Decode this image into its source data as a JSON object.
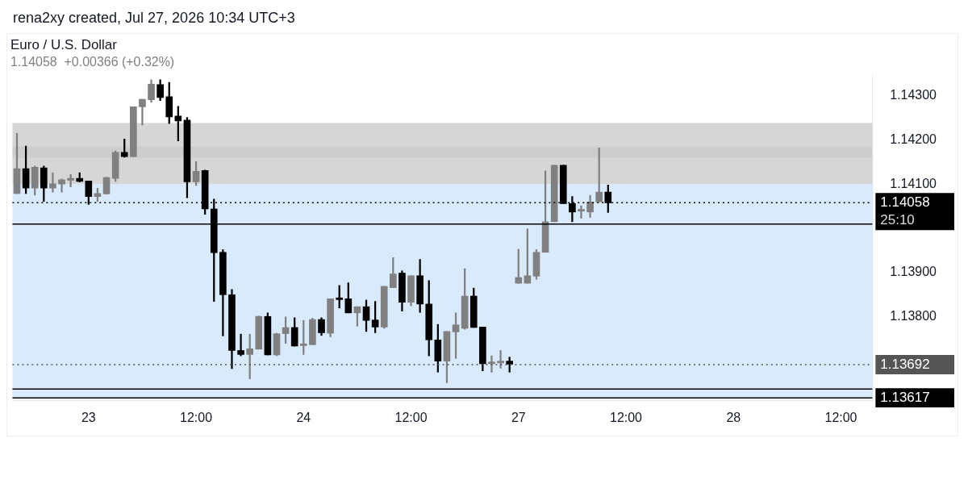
{
  "chart_data": {
    "type": "candlestick",
    "title": "Euro / U.S. Dollar",
    "subtitle": "1.14058  +0.00366 (+0.32%)",
    "annotations": [
      "rena2xy created, Jul 27, 2026 10:34 UTC+3",
      "25:10"
    ],
    "categories": [
      null,
      null,
      null,
      null,
      null,
      null,
      null,
      null,
      "23",
      null,
      null,
      null,
      null,
      null,
      null,
      null,
      null,
      null,
      null,
      null,
      "12:00",
      null,
      null,
      null,
      null,
      null,
      null,
      null,
      null,
      null,
      null,
      null,
      "24",
      null,
      null,
      null,
      null,
      null,
      null,
      null,
      null,
      null,
      null,
      null,
      "12:00",
      null,
      null,
      null,
      null,
      null,
      null,
      null,
      null,
      null,
      null,
      null,
      "27",
      null,
      null,
      null,
      null,
      null,
      null,
      null,
      null,
      null,
      null,
      null,
      "12:00",
      null,
      null,
      null,
      null,
      null,
      null,
      null,
      null,
      null,
      null,
      null,
      "28",
      null,
      null,
      null,
      null,
      null,
      null,
      null,
      null,
      null,
      null,
      null,
      "12:00",
      null,
      null,
      null
    ],
    "ohlc": [
      [
        1.14079,
        1.14215,
        1.14079,
        1.14135
      ],
      [
        1.14135,
        1.14186,
        1.14079,
        1.14091
      ],
      [
        1.14091,
        1.14141,
        1.14075,
        1.14138
      ],
      [
        1.14137,
        1.14141,
        1.14061,
        1.14091
      ],
      [
        1.14091,
        1.14126,
        1.14082,
        1.14101
      ],
      [
        1.141,
        1.14112,
        1.14082,
        1.1411
      ],
      [
        1.14109,
        1.14122,
        1.14094,
        1.14113
      ],
      [
        1.14113,
        1.14126,
        1.14105,
        1.14106
      ],
      [
        1.14107,
        1.14107,
        1.14054,
        1.14072
      ],
      [
        1.14072,
        1.14091,
        1.14061,
        1.14079
      ],
      [
        1.14078,
        1.14116,
        1.14078,
        1.14115
      ],
      [
        1.14113,
        1.14175,
        1.14106,
        1.14172
      ],
      [
        1.14172,
        1.14202,
        1.14161,
        1.14162
      ],
      [
        1.14162,
        1.14275,
        1.14162,
        1.14275
      ],
      [
        1.14275,
        1.14292,
        1.14234,
        1.14292
      ],
      [
        1.14291,
        1.14336,
        1.14285,
        1.14326
      ],
      [
        1.14325,
        1.14336,
        1.14289,
        1.14296
      ],
      [
        1.14298,
        1.1433,
        1.14237,
        1.14252
      ],
      [
        1.14254,
        1.14276,
        1.14198,
        1.14243
      ],
      [
        1.14245,
        1.14251,
        1.14069,
        1.14105
      ],
      [
        1.14105,
        1.14151,
        1.14097,
        1.14129
      ],
      [
        1.14131,
        1.14132,
        1.14032,
        1.14044
      ],
      [
        1.14044,
        1.14066,
        1.13835,
        1.13945
      ],
      [
        1.13946,
        1.13952,
        1.13757,
        1.1385
      ],
      [
        1.1385,
        1.13862,
        1.13683,
        1.13724
      ],
      [
        1.13724,
        1.13761,
        1.13712,
        1.13715
      ],
      [
        1.13715,
        1.13761,
        1.1366,
        1.13728
      ],
      [
        1.13727,
        1.13802,
        1.13727,
        1.13801
      ],
      [
        1.13801,
        1.13809,
        1.13714,
        1.13714
      ],
      [
        1.13714,
        1.13763,
        1.13712,
        1.13762
      ],
      [
        1.13762,
        1.138,
        1.1374,
        1.13776
      ],
      [
        1.13776,
        1.13798,
        1.13734,
        1.13734
      ],
      [
        1.13735,
        1.13792,
        1.13715,
        1.13739
      ],
      [
        1.13737,
        1.13797,
        1.13737,
        1.13794
      ],
      [
        1.13794,
        1.13798,
        1.13758,
        1.13764
      ],
      [
        1.13763,
        1.13841,
        1.13755,
        1.13841
      ],
      [
        1.13843,
        1.13871,
        1.1382,
        1.13839
      ],
      [
        1.13841,
        1.13877,
        1.13809,
        1.13809
      ],
      [
        1.13809,
        1.13823,
        1.13779,
        1.13823
      ],
      [
        1.13823,
        1.13838,
        1.13767,
        1.13792
      ],
      [
        1.13793,
        1.13835,
        1.13764,
        1.13777
      ],
      [
        1.13777,
        1.13869,
        1.13774,
        1.13869
      ],
      [
        1.13866,
        1.13934,
        1.13866,
        1.13897
      ],
      [
        1.13899,
        1.13904,
        1.13813,
        1.13833
      ],
      [
        1.13833,
        1.13893,
        1.13825,
        1.13893
      ],
      [
        1.13893,
        1.1393,
        1.1381,
        1.13829
      ],
      [
        1.13829,
        1.13882,
        1.13712,
        1.13748
      ],
      [
        1.13748,
        1.13783,
        1.13675,
        1.137
      ],
      [
        1.137,
        1.13767,
        1.13651,
        1.13767
      ],
      [
        1.13766,
        1.13809,
        1.13706,
        1.13782
      ],
      [
        1.13774,
        1.13909,
        1.13772,
        1.13847
      ],
      [
        1.13847,
        1.13865,
        1.13776,
        1.13776
      ],
      [
        1.13777,
        1.13777,
        1.13678,
        1.13694
      ],
      [
        1.13694,
        1.13712,
        1.13675,
        1.13698
      ],
      [
        1.13696,
        1.13724,
        1.13684,
        1.137
      ],
      [
        1.137,
        1.13709,
        1.13675,
        1.13693
      ],
      [
        1.13876,
        1.13953,
        1.13876,
        1.13889
      ],
      [
        1.13876,
        1.13999,
        1.13876,
        1.13893
      ],
      [
        1.13892,
        1.13952,
        1.13885,
        1.13946
      ],
      [
        1.13946,
        1.1413,
        1.13946,
        1.14015
      ],
      [
        1.14015,
        1.14143,
        1.14015,
        1.14143
      ],
      [
        1.14143,
        1.14143,
        1.14056,
        1.14056
      ],
      [
        1.14056,
        1.14072,
        1.14015,
        1.14037
      ],
      [
        1.14039,
        1.14051,
        1.14023,
        1.14043
      ],
      [
        1.14037,
        1.14075,
        1.14025,
        1.1406
      ],
      [
        1.1406,
        1.14182,
        1.1406,
        1.14082
      ],
      [
        1.14082,
        1.14098,
        1.14036,
        1.14058
      ],
      null,
      null,
      null,
      null,
      null,
      null,
      null,
      null,
      null,
      null,
      null,
      null,
      null,
      null,
      null,
      null,
      null,
      null,
      null,
      null,
      null,
      null,
      null,
      null,
      null,
      null,
      null,
      null,
      null
    ],
    "colors": [
      "#808080",
      "#000000",
      "#808080",
      "#000000",
      "#808080",
      "#808080",
      "#808080",
      "#000000",
      "#000000",
      "#808080",
      "#808080",
      "#808080",
      "#000000",
      "#808080",
      "#808080",
      "#808080",
      "#000000",
      "#000000",
      "#000000",
      "#000000",
      "#808080",
      "#000000",
      "#000000",
      "#000000",
      "#000000",
      "#000000",
      "#808080",
      "#808080",
      "#000000",
      "#808080",
      "#808080",
      "#000000",
      "#808080",
      "#808080",
      "#000000",
      "#808080",
      "#000000",
      "#000000",
      "#808080",
      "#000000",
      "#000000",
      "#808080",
      "#808080",
      "#000000",
      "#808080",
      "#000000",
      "#000000",
      "#000000",
      "#808080",
      "#808080",
      "#808080",
      "#000000",
      "#000000",
      "#808080",
      "#808080",
      "#000000",
      "#808080",
      "#808080",
      "#808080",
      "#808080",
      "#808080",
      "#000000",
      "#000000",
      "#808080",
      "#808080",
      "#808080",
      "#000000",
      null,
      null,
      null,
      null,
      null,
      null,
      null,
      null,
      null,
      null,
      null,
      null,
      null,
      null,
      null,
      null,
      null,
      null,
      null,
      null,
      null,
      null,
      null,
      null,
      null,
      null,
      null,
      null,
      null
    ],
    "ylim": [
      1.1361,
      1.14346
    ],
    "yticks": [
      {
        "value": 1.138,
        "label": "1.13800"
      },
      {
        "value": 1.139,
        "label": "1.13900"
      },
      {
        "value": 1.141,
        "label": "1.14100"
      },
      {
        "value": 1.142,
        "label": "1.14200"
      },
      {
        "value": 1.143,
        "label": "1.14300"
      }
    ],
    "bands": [
      {
        "axis": "y",
        "from": 1.1416,
        "to": 1.14185,
        "color": "#dcdcdc"
      },
      {
        "axis": "y",
        "from": 1.141,
        "to": 1.14238,
        "color": "#b4b4b4"
      },
      {
        "axis": "y",
        "from": 1.13617,
        "to": 1.141,
        "color": "#bbd9fb"
      }
    ],
    "ref_lines": [
      {
        "axis": "y",
        "value": 1.14058,
        "label": "1.14058",
        "color": "#000000",
        "line_style": "dotted"
      },
      {
        "axis": "y",
        "value": 1.13692,
        "label": "1.13692",
        "color": "#555555",
        "line_style": "dotted"
      },
      {
        "axis": "y",
        "value": 1.13617,
        "label": "1.13617",
        "color": "#000000",
        "line_style": "solid"
      },
      {
        "axis": "y",
        "value": 1.1401,
        "color": "#000000",
        "line_style": "solid"
      },
      {
        "axis": "y",
        "value": 1.13637,
        "color": "#000000",
        "line_style": "solid"
      }
    ],
    "grid": false,
    "legend": false
  }
}
